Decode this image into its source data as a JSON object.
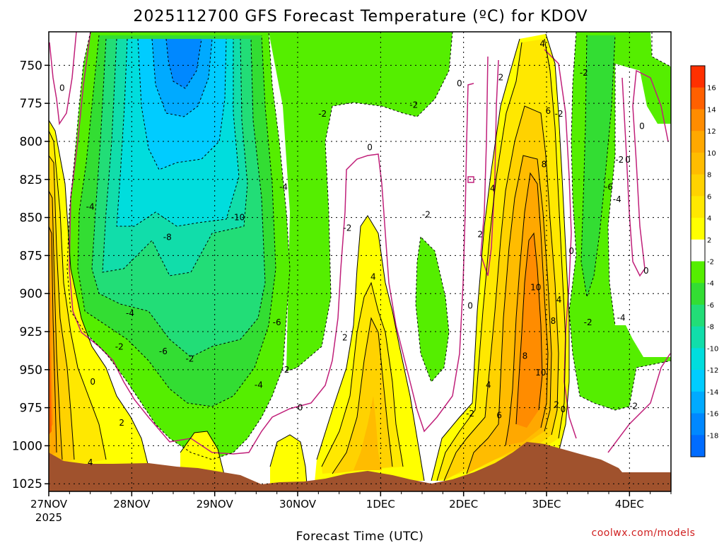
{
  "chart_data": {
    "type": "heatmap",
    "title": "2025112700 GFS Forecast Temperature (ºC) for KDOV",
    "xlabel": "Forecast Time (UTC)",
    "ylabel": "",
    "x_tick_labels": [
      "27NOV",
      "28NOV",
      "29NOV",
      "30NOV",
      "1DEC",
      "2DEC",
      "3DEC",
      "4DEC"
    ],
    "x_year_label": "2025",
    "x_range_days": [
      0,
      7.5
    ],
    "y_tick_labels": [
      "750",
      "775",
      "800",
      "825",
      "850",
      "875",
      "900",
      "925",
      "950",
      "975",
      "1000",
      "1025"
    ],
    "y_range_hpa": [
      728,
      1030
    ],
    "grid": true,
    "colorbar": {
      "placement": "right",
      "tick_labels": [
        "16",
        "14",
        "12",
        "10",
        "8",
        "6",
        "4",
        "2",
        "-2",
        "-4",
        "-6",
        "-8",
        "-10",
        "-12",
        "-14",
        "-16",
        "-18"
      ],
      "colors": [
        "#ff3000",
        "#ff6000",
        "#ff8c00",
        "#ffa800",
        "#ffbc00",
        "#ffd200",
        "#ffe800",
        "#ffff00",
        "#ffffff",
        "#55ee00",
        "#33dd33",
        "#22dd77",
        "#11ddaa",
        "#00dddd",
        "#00ccff",
        "#00aaff",
        "#0088ff",
        "#006cff"
      ]
    },
    "contour_labels": [
      {
        "text": "0",
        "x": 0.16,
        "y": 765
      },
      {
        "text": "-2",
        "x": 3.3,
        "y": 782
      },
      {
        "text": "-2",
        "x": 4.4,
        "y": 776
      },
      {
        "text": "0",
        "x": 4.95,
        "y": 762
      },
      {
        "text": "2",
        "x": 5.45,
        "y": 758
      },
      {
        "text": "4",
        "x": 5.95,
        "y": 736
      },
      {
        "text": "6",
        "x": 6.02,
        "y": 780
      },
      {
        "text": "-2",
        "x": 6.15,
        "y": 782
      },
      {
        "text": "-2",
        "x": 6.45,
        "y": 755
      },
      {
        "text": "0",
        "x": 7.15,
        "y": 790
      },
      {
        "text": "0",
        "x": 3.87,
        "y": 804
      },
      {
        "text": "-2",
        "x": 6.88,
        "y": 812
      },
      {
        "text": "0",
        "x": 6.98,
        "y": 812
      },
      {
        "text": "8",
        "x": 5.97,
        "y": 815
      },
      {
        "text": "4",
        "x": 5.35,
        "y": 831
      },
      {
        "text": "-4",
        "x": 2.83,
        "y": 830
      },
      {
        "text": "-6",
        "x": 6.75,
        "y": 830
      },
      {
        "text": "-4",
        "x": 6.85,
        "y": 838
      },
      {
        "text": "-4",
        "x": 0.5,
        "y": 843
      },
      {
        "text": "-10",
        "x": 2.28,
        "y": 850
      },
      {
        "text": "-2",
        "x": 4.55,
        "y": 848
      },
      {
        "text": "-2",
        "x": 3.6,
        "y": 857
      },
      {
        "text": "2",
        "x": 5.2,
        "y": 861
      },
      {
        "text": "-8",
        "x": 1.43,
        "y": 863
      },
      {
        "text": "0",
        "x": 6.3,
        "y": 872
      },
      {
        "text": "0",
        "x": 7.2,
        "y": 885
      },
      {
        "text": "4",
        "x": 3.91,
        "y": 889
      },
      {
        "text": "10",
        "x": 5.87,
        "y": 896
      },
      {
        "text": "4",
        "x": 6.15,
        "y": 904
      },
      {
        "text": "0",
        "x": 5.08,
        "y": 908
      },
      {
        "text": "-4",
        "x": 0.98,
        "y": 913
      },
      {
        "text": "-4",
        "x": 6.9,
        "y": 916
      },
      {
        "text": "-2",
        "x": 6.5,
        "y": 919
      },
      {
        "text": "-6",
        "x": 2.75,
        "y": 919
      },
      {
        "text": "8",
        "x": 6.08,
        "y": 918
      },
      {
        "text": "2",
        "x": 3.57,
        "y": 929
      },
      {
        "text": "-2",
        "x": 0.85,
        "y": 935
      },
      {
        "text": "-6",
        "x": 1.38,
        "y": 938
      },
      {
        "text": "-2",
        "x": 1.7,
        "y": 943
      },
      {
        "text": "8",
        "x": 5.74,
        "y": 941
      },
      {
        "text": "-2",
        "x": 2.85,
        "y": 950
      },
      {
        "text": "10",
        "x": 5.93,
        "y": 952
      },
      {
        "text": "0",
        "x": 0.53,
        "y": 958
      },
      {
        "text": "-4",
        "x": 2.53,
        "y": 960
      },
      {
        "text": "4",
        "x": 5.3,
        "y": 960
      },
      {
        "text": "2",
        "x": 6.12,
        "y": 973
      },
      {
        "text": "0",
        "x": 6.2,
        "y": 976
      },
      {
        "text": "0",
        "x": 3.03,
        "y": 975
      },
      {
        "text": "-2",
        "x": 7.05,
        "y": 974
      },
      {
        "text": "-2",
        "x": 5.08,
        "y": 979
      },
      {
        "text": "6",
        "x": 5.43,
        "y": 980
      },
      {
        "text": "2",
        "x": 0.88,
        "y": 985
      },
      {
        "text": "4",
        "x": 0.5,
        "y": 1011
      }
    ]
  },
  "credit": "coolwx.com/models"
}
